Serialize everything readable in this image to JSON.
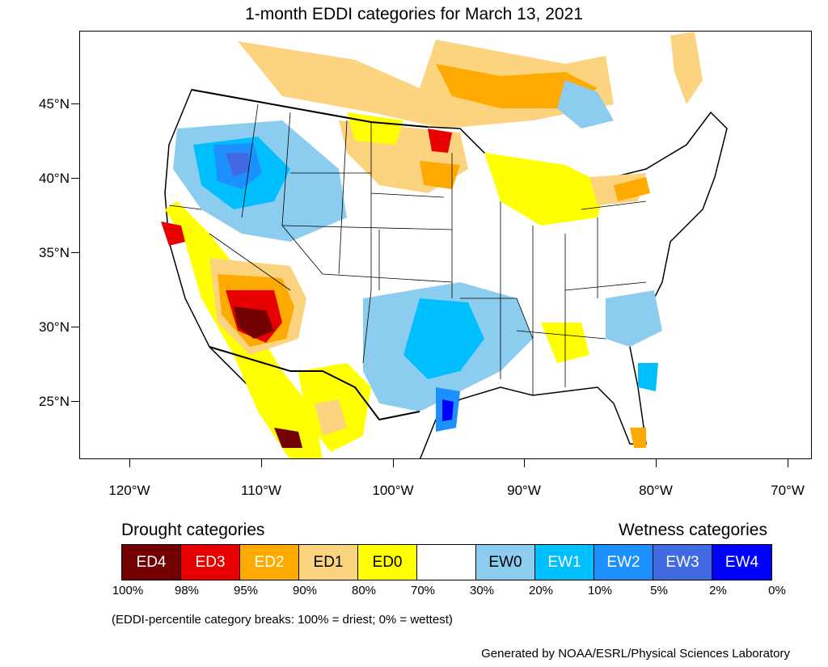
{
  "title": "1-month EDDI categories for March 13, 2021",
  "lat_labels": [
    "45°N",
    "40°N",
    "35°N",
    "30°N",
    "25°N"
  ],
  "lon_labels": [
    "120°W",
    "110°W",
    "100°W",
    "90°W",
    "80°W",
    "70°W"
  ],
  "legend": {
    "drought_heading": "Drought categories",
    "wetness_heading": "Wetness categories",
    "categories": [
      {
        "label": "ED4",
        "color": "#730000"
      },
      {
        "label": "ED3",
        "color": "#e60000"
      },
      {
        "label": "ED2",
        "color": "#ffaa00"
      },
      {
        "label": "ED1",
        "color": "#fcd37f"
      },
      {
        "label": "ED0",
        "color": "#ffff00"
      },
      {
        "label": "",
        "color": "#ffffff"
      },
      {
        "label": "EW0",
        "color": "#8ccdef"
      },
      {
        "label": "EW1",
        "color": "#00bfff"
      },
      {
        "label": "EW2",
        "color": "#1d90ff"
      },
      {
        "label": "EW3",
        "color": "#4169e1"
      },
      {
        "label": "EW4",
        "color": "#0000ff"
      }
    ],
    "percentile_ticks": [
      "100%",
      "98%",
      "95%",
      "90%",
      "80%",
      "70%",
      "30%",
      "20%",
      "10%",
      "5%",
      "2%",
      "0%"
    ],
    "note": "(EDDI-percentile category breaks: 100% = driest; 0% = wettest)"
  },
  "credit": "Generated by NOAA/ESRL/Physical Sciences Laboratory"
}
